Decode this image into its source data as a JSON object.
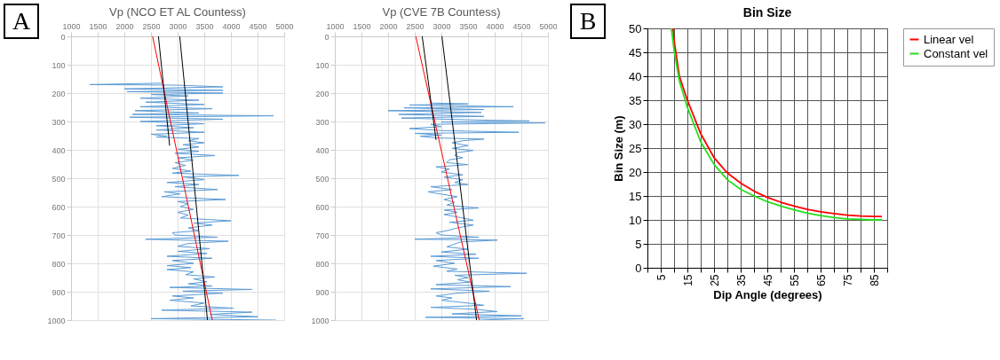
{
  "chart_data": [
    {
      "type": "line",
      "title": "Vp (NCO ET AL Countess)",
      "annotations": [
        "A"
      ],
      "xlim": [
        1000,
        5000
      ],
      "xticks": [
        1000,
        1500,
        2000,
        2500,
        3000,
        3500,
        4000,
        4500,
        5000
      ],
      "ylim": [
        1000,
        0
      ],
      "yticks": [
        0,
        100,
        200,
        300,
        400,
        500,
        600,
        700,
        800,
        900,
        1000
      ],
      "grid": true,
      "series": [
        {
          "color": "#5b9bd5",
          "x": [
            2700,
            1350,
            3000,
            3850,
            2000,
            3850,
            2050,
            3850,
            2500,
            3200,
            2300,
            3400,
            2400,
            3500,
            2300,
            3650,
            2200,
            3400,
            2150,
            4800,
            2100,
            3850,
            2300,
            3500,
            2600,
            3300,
            2600,
            3500,
            2500,
            2800,
            2600,
            3400,
            3200,
            3500,
            3100,
            3400,
            3000,
            3400,
            2950,
            3700,
            3000,
            3300,
            2950,
            3150,
            2900,
            3250,
            2900,
            4150,
            3100,
            3500,
            2800,
            3400,
            2950,
            3750,
            2750,
            3050,
            2700,
            3900,
            3000,
            3200,
            3050,
            3300,
            3000,
            3200,
            3050,
            4000,
            3300,
            3650,
            3200,
            3400,
            2900,
            2950,
            3750,
            2400,
            3950,
            3200,
            3000,
            3600,
            3000,
            3550,
            2800,
            3650,
            2900,
            3300,
            2800,
            3250,
            2800,
            3300,
            3150,
            3700,
            3300,
            3550,
            3200,
            3650,
            2850,
            4400,
            3100,
            3850,
            2900,
            3300,
            2850,
            3500,
            3250,
            4050,
            2700,
            4400,
            3600,
            4500,
            2500,
            4850
          ],
          "values": [
            165,
            170,
            172,
            178,
            185,
            190,
            195,
            200,
            205,
            210,
            218,
            225,
            232,
            240,
            248,
            255,
            262,
            270,
            275,
            280,
            285,
            292,
            300,
            308,
            315,
            322,
            330,
            338,
            345,
            352,
            355,
            360,
            368,
            375,
            382,
            390,
            398,
            405,
            412,
            420,
            428,
            436,
            445,
            455,
            465,
            475,
            482,
            490,
            495,
            505,
            515,
            522,
            530,
            540,
            548,
            555,
            565,
            575,
            582,
            590,
            600,
            610,
            620,
            630,
            640,
            650,
            658,
            665,
            675,
            685,
            692,
            700,
            708,
            715,
            722,
            730,
            740,
            748,
            758,
            765,
            775,
            782,
            790,
            800,
            808,
            815,
            822,
            830,
            840,
            848,
            855,
            865,
            872,
            880,
            885,
            892,
            898,
            905,
            915,
            922,
            930,
            940,
            950,
            958,
            965,
            972,
            980,
            988,
            995,
            1000
          ]
        },
        {
          "type": "line",
          "color": "#ff0000",
          "x": [
            2530,
            3650
          ],
          "values": [
            0,
            1000
          ]
        },
        {
          "type": "line",
          "color": "#000000",
          "x": [
            2640,
            2850
          ],
          "values": [
            0,
            385
          ]
        },
        {
          "type": "line",
          "color": "#000000",
          "x": [
            3040,
            3560
          ],
          "values": [
            0,
            1000
          ]
        }
      ]
    },
    {
      "type": "line",
      "title": "Vp (CVE 7B Countess)",
      "xlim": [
        1000,
        5000
      ],
      "xticks": [
        1000,
        1500,
        2000,
        2500,
        3000,
        3500,
        4000,
        4500,
        5000
      ],
      "ylim": [
        1000,
        0
      ],
      "yticks": [
        0,
        100,
        200,
        300,
        400,
        500,
        600,
        700,
        800,
        900,
        1000
      ],
      "grid": true,
      "series": [
        {
          "color": "#5b9bd5",
          "x": [
            2800,
            3500,
            2400,
            4350,
            2300,
            3800,
            2000,
            3750,
            2200,
            3800,
            2250,
            3700,
            4650,
            3000,
            4950,
            2800,
            3000,
            2400,
            3000,
            4450,
            2500,
            3000,
            2600,
            2900,
            3800,
            3400,
            3200,
            3500,
            3200,
            3600,
            3300,
            3250,
            3400,
            3150,
            3100,
            3500,
            2900,
            3150,
            3000,
            3400,
            3050,
            3400,
            3250,
            3500,
            2800,
            3200,
            2750,
            3000,
            3300,
            3050,
            3250,
            3100,
            3400,
            3700,
            3050,
            3300,
            3050,
            3400,
            3600,
            3150,
            3600,
            3300,
            3100,
            2900,
            3000,
            3700,
            2500,
            4050,
            3350,
            3200,
            3100,
            3500,
            3000,
            3650,
            2800,
            3700,
            2900,
            3250,
            2850,
            3300,
            3100,
            4600,
            3250,
            3500,
            3300,
            3550,
            2900,
            4300,
            2800,
            3900,
            3300,
            2900,
            3200,
            3000,
            3500,
            3800,
            2800,
            3650,
            4050,
            3200,
            4500,
            2700,
            4550,
            3700
          ],
          "values": [
            235,
            238,
            242,
            248,
            252,
            258,
            262,
            268,
            275,
            282,
            288,
            295,
            298,
            302,
            305,
            310,
            318,
            325,
            332,
            338,
            342,
            348,
            352,
            358,
            362,
            368,
            375,
            385,
            395,
            402,
            410,
            420,
            428,
            435,
            445,
            452,
            460,
            468,
            478,
            488,
            496,
            505,
            515,
            522,
            530,
            540,
            548,
            556,
            565,
            575,
            585,
            595,
            600,
            605,
            612,
            620,
            628,
            640,
            648,
            655,
            665,
            675,
            685,
            692,
            700,
            708,
            715,
            718,
            725,
            735,
            742,
            750,
            760,
            768,
            775,
            782,
            790,
            800,
            810,
            820,
            828,
            835,
            842,
            850,
            858,
            866,
            875,
            882,
            890,
            898,
            905,
            915,
            922,
            930,
            940,
            948,
            955,
            962,
            970,
            978,
            985,
            990,
            995,
            1000
          ]
        },
        {
          "type": "line",
          "color": "#ff0000",
          "x": [
            2520,
            3710
          ],
          "values": [
            0,
            1000
          ]
        },
        {
          "type": "line",
          "color": "#000000",
          "x": [
            2640,
            2900
          ],
          "values": [
            0,
            365
          ]
        },
        {
          "type": "line",
          "color": "#000000",
          "x": [
            3010,
            3660
          ],
          "values": [
            0,
            1000
          ]
        }
      ]
    },
    {
      "type": "line",
      "title": "Bin Size",
      "annotations": [
        "B"
      ],
      "xlabel": "Dip Angle (degrees)",
      "ylabel": "Bin Size (m)",
      "legend": "right",
      "grid": true,
      "xlim": [
        0,
        90
      ],
      "xticks": [
        {
          "value": 0,
          "label": null
        },
        5,
        {
          "value": 10,
          "label": null
        },
        15,
        {
          "value": 20,
          "label": null
        },
        25,
        {
          "value": 30,
          "label": null
        },
        35,
        {
          "value": 40,
          "label": null
        },
        45,
        {
          "value": 50,
          "label": null
        },
        55,
        {
          "value": 60,
          "label": null
        },
        65,
        {
          "value": 70,
          "label": null
        },
        75,
        {
          "value": 80,
          "label": null
        },
        85,
        {
          "value": 90,
          "label": null
        }
      ],
      "ylim": [
        0,
        50
      ],
      "yticks": [
        0,
        5,
        10,
        15,
        20,
        25,
        30,
        35,
        40,
        45,
        50
      ],
      "series": [
        {
          "name": "Linear vel",
          "color": "#ff0000",
          "x": [
            9.6,
            10,
            12,
            15,
            20,
            25,
            30,
            35,
            40,
            45,
            50,
            55,
            60,
            65,
            70,
            75,
            80,
            85,
            88
          ],
          "values": [
            50,
            47.5,
            40,
            35,
            28,
            23,
            19.8,
            17.7,
            16,
            14.7,
            13.7,
            12.9,
            12.2,
            11.7,
            11.3,
            11,
            10.8,
            10.7,
            10.7
          ]
        },
        {
          "name": "Constant vel",
          "color": "#22e01a",
          "x": [
            9,
            10,
            12,
            15,
            20,
            25,
            30,
            35,
            40,
            45,
            50,
            55,
            60,
            65,
            70,
            75,
            80,
            85,
            88
          ],
          "values": [
            50,
            45.5,
            39,
            33.5,
            26.3,
            21.6,
            18.4,
            16.4,
            15,
            13.8,
            12.9,
            12.1,
            11.4,
            10.9,
            10.5,
            10.2,
            10.1,
            10,
            10
          ]
        }
      ]
    }
  ]
}
